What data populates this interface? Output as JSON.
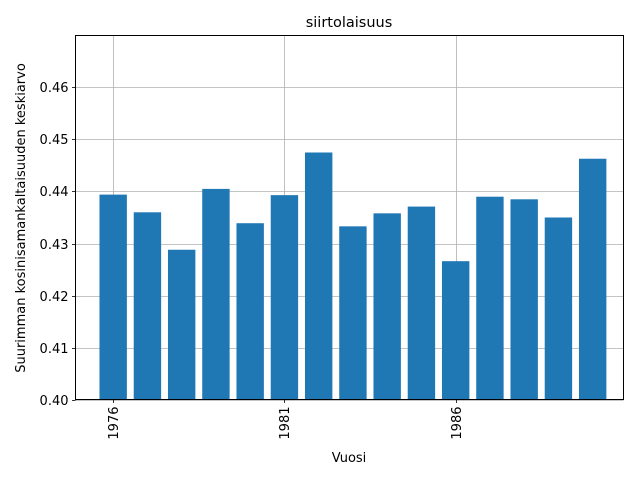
{
  "chart_data": {
    "type": "bar",
    "title": "siirtolaisuus",
    "xlabel": "Vuosi",
    "ylabel": "Suurimman kosinisamankaltaisuuden keskiarvo",
    "x": [
      1976,
      1977,
      1978,
      1979,
      1980,
      1981,
      1982,
      1983,
      1984,
      1985,
      1986,
      1987,
      1988,
      1989,
      1990
    ],
    "values": [
      0.4394,
      0.436,
      0.4288,
      0.4405,
      0.4339,
      0.4393,
      0.4475,
      0.4333,
      0.4358,
      0.4371,
      0.4266,
      0.439,
      0.4385,
      0.435,
      0.4463
    ],
    "xticks": [
      1976,
      1981,
      1986
    ],
    "yticks": [
      0.4,
      0.41,
      0.42,
      0.43,
      0.44,
      0.45,
      0.46
    ],
    "ylim": [
      0.4,
      0.47
    ],
    "xlim": [
      1974.9,
      1990.9
    ],
    "grid": true,
    "color": "#1f77b4"
  }
}
